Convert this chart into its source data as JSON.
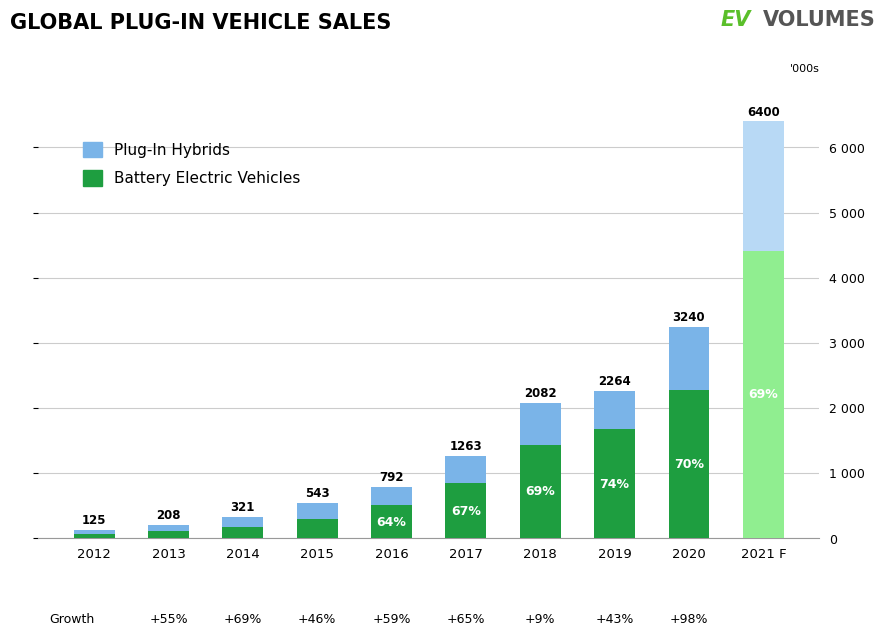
{
  "title": "GLOBAL PLUG-IN VEHICLE SALES",
  "logo_ev": "EV",
  "logo_volumes": "VOLUMES",
  "ylabel_right": "'000s",
  "years": [
    "2012",
    "2013",
    "2014",
    "2015",
    "2016",
    "2017",
    "2018",
    "2019",
    "2020",
    "2021 F"
  ],
  "totals": [
    125,
    208,
    321,
    543,
    792,
    1263,
    2082,
    2264,
    3240,
    6400
  ],
  "bev_values": [
    63,
    104,
    176,
    299,
    507,
    846,
    1437,
    1675,
    2268,
    4416
  ],
  "phev_values": [
    62,
    104,
    145,
    244,
    285,
    417,
    645,
    589,
    972,
    1984
  ],
  "bev_pct": [
    null,
    null,
    null,
    null,
    "64%",
    "67%",
    "69%",
    "74%",
    "70%",
    "69%"
  ],
  "growth": [
    "Growth",
    "+55%",
    "+69%",
    "+46%",
    "+59%",
    "+65%",
    "+9%",
    "+43%",
    "+98%"
  ],
  "color_bev": "#1e9e40",
  "color_bev_2021": "#90ee90",
  "color_phev": "#7ab4e8",
  "color_phev_2021": "#b8d9f5",
  "ylim": [
    0,
    7000
  ],
  "yticks": [
    0,
    1000,
    2000,
    3000,
    4000,
    5000,
    6000
  ],
  "ytick_labels": [
    "0",
    "1 000",
    "2 000",
    "3 000",
    "4 000",
    "5 000",
    "6 000"
  ],
  "background_color": "#ffffff",
  "grid_color": "#cccccc",
  "bar_width": 0.55,
  "legend_phev": "Plug-In Hybrids",
  "legend_bev": "Battery Electric Vehicles"
}
